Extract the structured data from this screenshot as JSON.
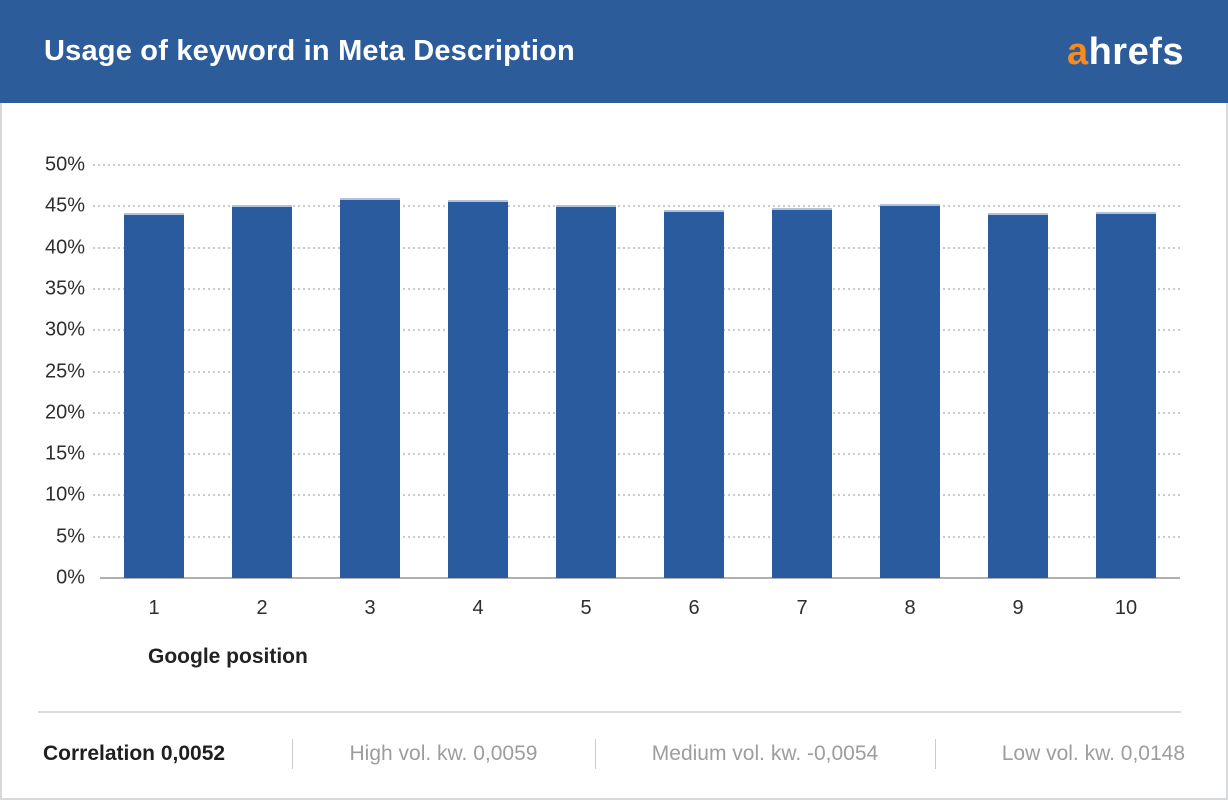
{
  "header": {
    "title": "Usage of keyword in Meta Description",
    "logo_accent_letter": "a",
    "logo_rest": "hrefs"
  },
  "chart_data": {
    "type": "bar",
    "title": "Usage of keyword in Meta Description",
    "categories": [
      "1",
      "2",
      "3",
      "4",
      "5",
      "6",
      "7",
      "8",
      "9",
      "10"
    ],
    "values": [
      44.2,
      45.1,
      46.0,
      45.8,
      45.1,
      44.6,
      44.8,
      45.3,
      44.2,
      44.3
    ],
    "xlabel": "Google position",
    "ylabel": "",
    "ylim": [
      0,
      50
    ],
    "yticks": [
      0,
      5,
      10,
      15,
      20,
      25,
      30,
      35,
      40,
      45,
      50
    ],
    "ytick_labels": [
      "0%",
      "5%",
      "10%",
      "15%",
      "20%",
      "25%",
      "30%",
      "35%",
      "40%",
      "45%",
      "50%"
    ],
    "grid": "horizontal-dotted",
    "legend": "none",
    "bar_color": "#2a5b9e"
  },
  "footer": {
    "items": [
      {
        "label": "Correlation 0,0052",
        "emphasis": true
      },
      {
        "label": "High vol. kw. 0,0059",
        "emphasis": false
      },
      {
        "label": "Medium vol. kw. -0,0054",
        "emphasis": false
      },
      {
        "label": "Low vol. kw. 0,0148",
        "emphasis": false
      }
    ]
  },
  "colors": {
    "header_bg": "#2d5c9b",
    "bar": "#2a5b9e",
    "logo_accent": "#f68b1f",
    "tick_text": "#2e2e2e",
    "footer_gray": "#9d9d9d",
    "gridline": "#cbcbcb",
    "zero_line": "#b0b0b0",
    "divider": "#dcdcdc",
    "card_border": "#d6d8da"
  }
}
